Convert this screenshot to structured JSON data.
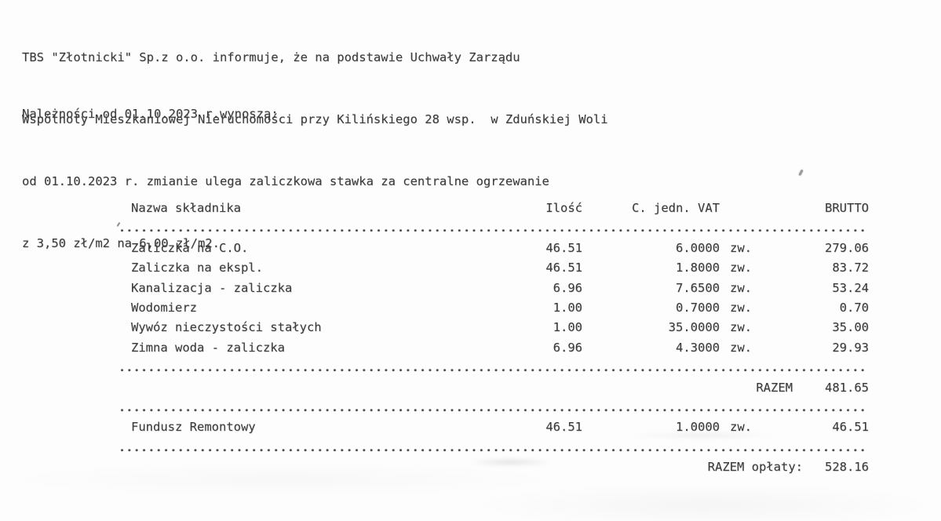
{
  "page": {
    "intro_lines": [
      "TBS \"Złotnicki\" Sp.z o.o. informuje, że na podstawie Uchwały Zarządu",
      "Wspólnoty Mieszkaniowej Nieruchomości przy Kilińskiego 28 wsp.  w Zduńskiej Woli",
      "od 01.10.2023 r. zmianie ulega zaliczkowa stawka za centralne ogrzewanie",
      "z 3,50 zł/m2 na 6,00 zł/m2."
    ],
    "subheading": "Należności od 01.10.2023 r.wynoszą:"
  },
  "table": {
    "headers": {
      "name": "Nazwa składnika",
      "qty": "Ilość",
      "unit_vat": "C. jedn. VAT",
      "gross": "BRUTTO"
    },
    "rows": [
      {
        "name": "Zaliczka na C.O.",
        "qty": "46.51",
        "unit": "6.0000",
        "vat": "zw.",
        "gross": "279.06"
      },
      {
        "name": "Zaliczka na ekspl.",
        "qty": "46.51",
        "unit": "1.8000",
        "vat": "zw.",
        "gross": "83.72"
      },
      {
        "name": "Kanalizacja - zaliczka",
        "qty": "6.96",
        "unit": "7.6500",
        "vat": "zw.",
        "gross": "53.24"
      },
      {
        "name": "Wodomierz",
        "qty": "1.00",
        "unit": "0.7000",
        "vat": "zw.",
        "gross": "0.70"
      },
      {
        "name": "Wywóz nieczystości stałych",
        "qty": "1.00",
        "unit": "35.0000",
        "vat": "zw.",
        "gross": "35.00"
      },
      {
        "name": "Zimna woda - zaliczka",
        "qty": "6.96",
        "unit": "4.3000",
        "vat": "zw.",
        "gross": "29.93"
      }
    ],
    "subtotal": {
      "label": "RAZEM",
      "value": "481.65"
    },
    "fund_row": {
      "name": "Fundusz Remontowy",
      "qty": "46.51",
      "unit": "1.0000",
      "vat": "zw.",
      "gross": "46.51"
    },
    "total": {
      "label": "RAZEM opłaty:",
      "value": "528.16"
    }
  }
}
